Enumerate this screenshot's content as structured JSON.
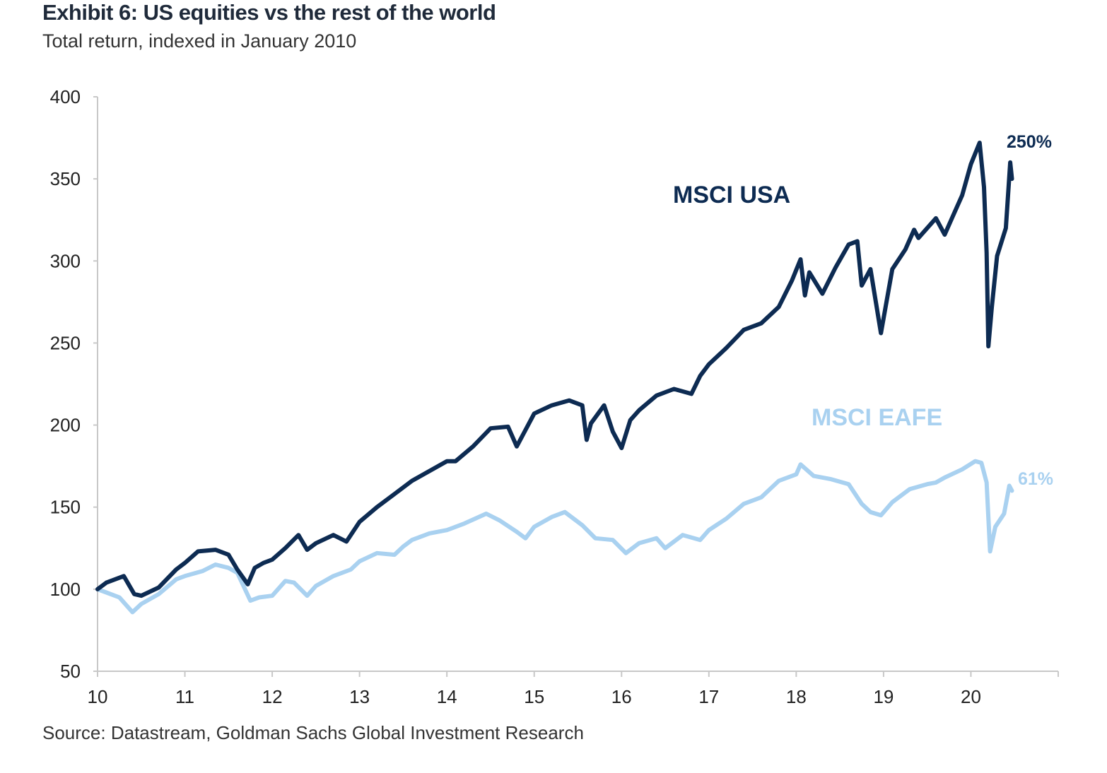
{
  "header": {
    "title": "Exhibit 6: US equities vs the rest of the world",
    "subtitle": "Total return, indexed in January 2010"
  },
  "footer": {
    "source": "Source: Datastream, Goldman Sachs Global Investment Research"
  },
  "chart_data": {
    "type": "line",
    "title": "Exhibit 6: US equities vs the rest of the world",
    "subtitle": "Total return, indexed in January 2010",
    "xlabel": "",
    "ylabel": "",
    "xlim": [
      2010.0,
      2021.0
    ],
    "ylim": [
      50,
      400
    ],
    "x_ticks": [
      2010,
      2011,
      2012,
      2013,
      2014,
      2015,
      2016,
      2017,
      2018,
      2019,
      2020
    ],
    "x_tick_labels": [
      "10",
      "11",
      "12",
      "13",
      "14",
      "15",
      "16",
      "17",
      "18",
      "19",
      "20"
    ],
    "y_ticks": [
      50,
      100,
      150,
      200,
      250,
      300,
      350,
      400
    ],
    "y_tick_labels": [
      "50",
      "100",
      "150",
      "200",
      "250",
      "300",
      "350",
      "400"
    ],
    "grid": false,
    "series": [
      {
        "name": "MSCI USA",
        "color": "#0d2b52",
        "end_label": "250%",
        "x": [
          2010.0,
          2010.1,
          2010.3,
          2010.42,
          2010.5,
          2010.7,
          2010.9,
          2011.0,
          2011.15,
          2011.35,
          2011.5,
          2011.6,
          2011.72,
          2011.8,
          2011.9,
          2012.0,
          2012.15,
          2012.3,
          2012.4,
          2012.5,
          2012.7,
          2012.85,
          2013.0,
          2013.2,
          2013.4,
          2013.6,
          2013.8,
          2014.0,
          2014.1,
          2014.3,
          2014.5,
          2014.7,
          2014.8,
          2014.9,
          2015.0,
          2015.2,
          2015.4,
          2015.55,
          2015.6,
          2015.65,
          2015.8,
          2015.9,
          2016.0,
          2016.1,
          2016.2,
          2016.4,
          2016.6,
          2016.8,
          2016.9,
          2017.0,
          2017.2,
          2017.4,
          2017.6,
          2017.8,
          2017.95,
          2018.05,
          2018.1,
          2018.15,
          2018.3,
          2018.45,
          2018.6,
          2018.7,
          2018.75,
          2018.85,
          2018.97,
          2019.1,
          2019.25,
          2019.35,
          2019.4,
          2019.5,
          2019.6,
          2019.7,
          2019.8,
          2019.9,
          2020.0,
          2020.1,
          2020.15,
          2020.18,
          2020.2,
          2020.24,
          2020.3,
          2020.4,
          2020.45,
          2020.47
        ],
        "y": [
          100,
          104,
          108,
          97,
          96,
          101,
          112,
          116,
          123,
          124,
          121,
          112,
          103,
          113,
          116,
          118,
          125,
          133,
          124,
          128,
          133,
          129,
          141,
          150,
          158,
          166,
          172,
          178,
          178,
          187,
          198,
          199,
          187,
          197,
          207,
          212,
          215,
          212,
          191,
          201,
          212,
          196,
          186,
          203,
          209,
          218,
          222,
          219,
          230,
          237,
          247,
          258,
          262,
          272,
          288,
          301,
          279,
          293,
          280,
          296,
          310,
          312,
          285,
          295,
          256,
          295,
          307,
          319,
          314,
          320,
          326,
          316,
          328,
          340,
          359,
          372,
          345,
          305,
          248,
          272,
          303,
          320,
          360,
          350
        ]
      },
      {
        "name": "MSCI EAFE",
        "color": "#a9d1f0",
        "end_label": "61%",
        "x": [
          2010.0,
          2010.1,
          2010.25,
          2010.4,
          2010.5,
          2010.7,
          2010.9,
          2011.0,
          2011.2,
          2011.35,
          2011.5,
          2011.6,
          2011.75,
          2011.85,
          2012.0,
          2012.15,
          2012.25,
          2012.4,
          2012.5,
          2012.7,
          2012.9,
          2013.0,
          2013.2,
          2013.4,
          2013.5,
          2013.6,
          2013.8,
          2014.0,
          2014.2,
          2014.45,
          2014.6,
          2014.8,
          2014.9,
          2015.0,
          2015.2,
          2015.35,
          2015.55,
          2015.7,
          2015.9,
          2016.05,
          2016.2,
          2016.4,
          2016.5,
          2016.7,
          2016.9,
          2017.0,
          2017.2,
          2017.4,
          2017.6,
          2017.8,
          2018.0,
          2018.05,
          2018.2,
          2018.4,
          2018.6,
          2018.75,
          2018.85,
          2018.97,
          2019.1,
          2019.3,
          2019.5,
          2019.6,
          2019.7,
          2019.9,
          2020.05,
          2020.12,
          2020.18,
          2020.22,
          2020.28,
          2020.38,
          2020.44,
          2020.47
        ],
        "y": [
          100,
          98,
          95,
          86,
          91,
          97,
          106,
          108,
          111,
          115,
          113,
          110,
          93,
          95,
          96,
          105,
          104,
          96,
          102,
          108,
          112,
          117,
          122,
          121,
          126,
          130,
          134,
          136,
          140,
          146,
          142,
          135,
          131,
          138,
          144,
          147,
          139,
          131,
          130,
          122,
          128,
          131,
          125,
          133,
          130,
          136,
          143,
          152,
          156,
          166,
          170,
          176,
          169,
          167,
          164,
          152,
          147,
          145,
          153,
          161,
          164,
          165,
          168,
          173,
          178,
          177,
          165,
          123,
          138,
          146,
          163,
          160
        ]
      }
    ]
  }
}
